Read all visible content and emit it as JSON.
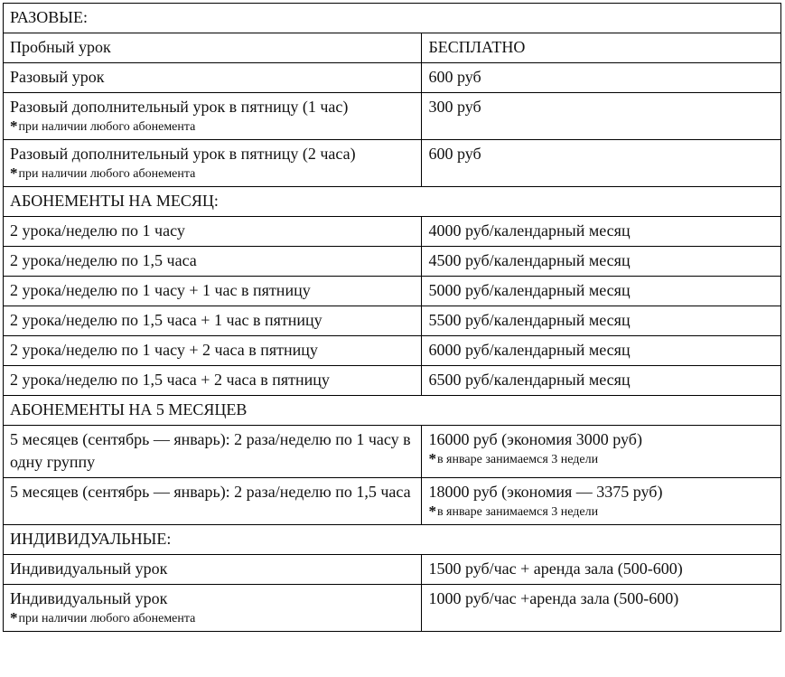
{
  "note_mark": "*",
  "sections": {
    "single": {
      "header": "РАЗОВЫЕ:",
      "rows": [
        {
          "name": "Пробный урок",
          "price": "БЕСПЛАТНО"
        },
        {
          "name": "Разовый урок",
          "price": "600 руб"
        },
        {
          "name": "Разовый дополнительный урок в пятницу (1 час)",
          "name_note": "при наличии любого абонемента",
          "price": "300 руб"
        },
        {
          "name": "Разовый дополнительный урок в пятницу (2 часа)",
          "name_note": "при наличии любого абонемента",
          "price": "600 руб"
        }
      ]
    },
    "monthly": {
      "header": "АБОНЕМЕНТЫ НА МЕСЯЦ:",
      "rows": [
        {
          "name": "2 урока/неделю по 1 часу",
          "price": "4000 руб/календарный месяц"
        },
        {
          "name": "2 урока/неделю по 1,5 часа",
          "price": "4500 руб/календарный месяц"
        },
        {
          "name": "2 урока/неделю по 1 часу + 1 час в пятницу",
          "price": "5000 руб/календарный месяц"
        },
        {
          "name": "2 урока/неделю по 1,5 часа + 1 час в пятницу",
          "price": "5500 руб/календарный месяц"
        },
        {
          "name": "2 урока/неделю по 1 часу + 2 часа в пятницу",
          "price": "6000 руб/календарный месяц"
        },
        {
          "name": "2 урока/неделю по 1,5 часа + 2 часа в пятницу",
          "price": "6500 руб/календарный месяц"
        }
      ]
    },
    "five_months": {
      "header": "АБОНЕМЕНТЫ НА 5 МЕСЯЦЕВ",
      "rows": [
        {
          "name": "5 месяцев (сентябрь — январь): 2 раза/неделю по 1 часу в одну группу",
          "price": "16000 руб (экономия 3000 руб)",
          "price_note": "в январе занимаемся 3 недели"
        },
        {
          "name": "5 месяцев (сентябрь — январь): 2 раза/неделю по 1,5 часа",
          "price": "18000 руб (экономия — 3375 руб)",
          "price_note": "в январе занимаемся 3 недели"
        }
      ]
    },
    "individual": {
      "header": "ИНДИВИДУАЛЬНЫЕ:",
      "rows": [
        {
          "name": "Индивидуальный урок",
          "price": "1500 руб/час + аренда зала (500-600)"
        },
        {
          "name": "Индивидуальный урок",
          "name_note": "при наличии любого абонемента",
          "price": "1000 руб/час +аренда зала (500-600)"
        }
      ]
    }
  }
}
